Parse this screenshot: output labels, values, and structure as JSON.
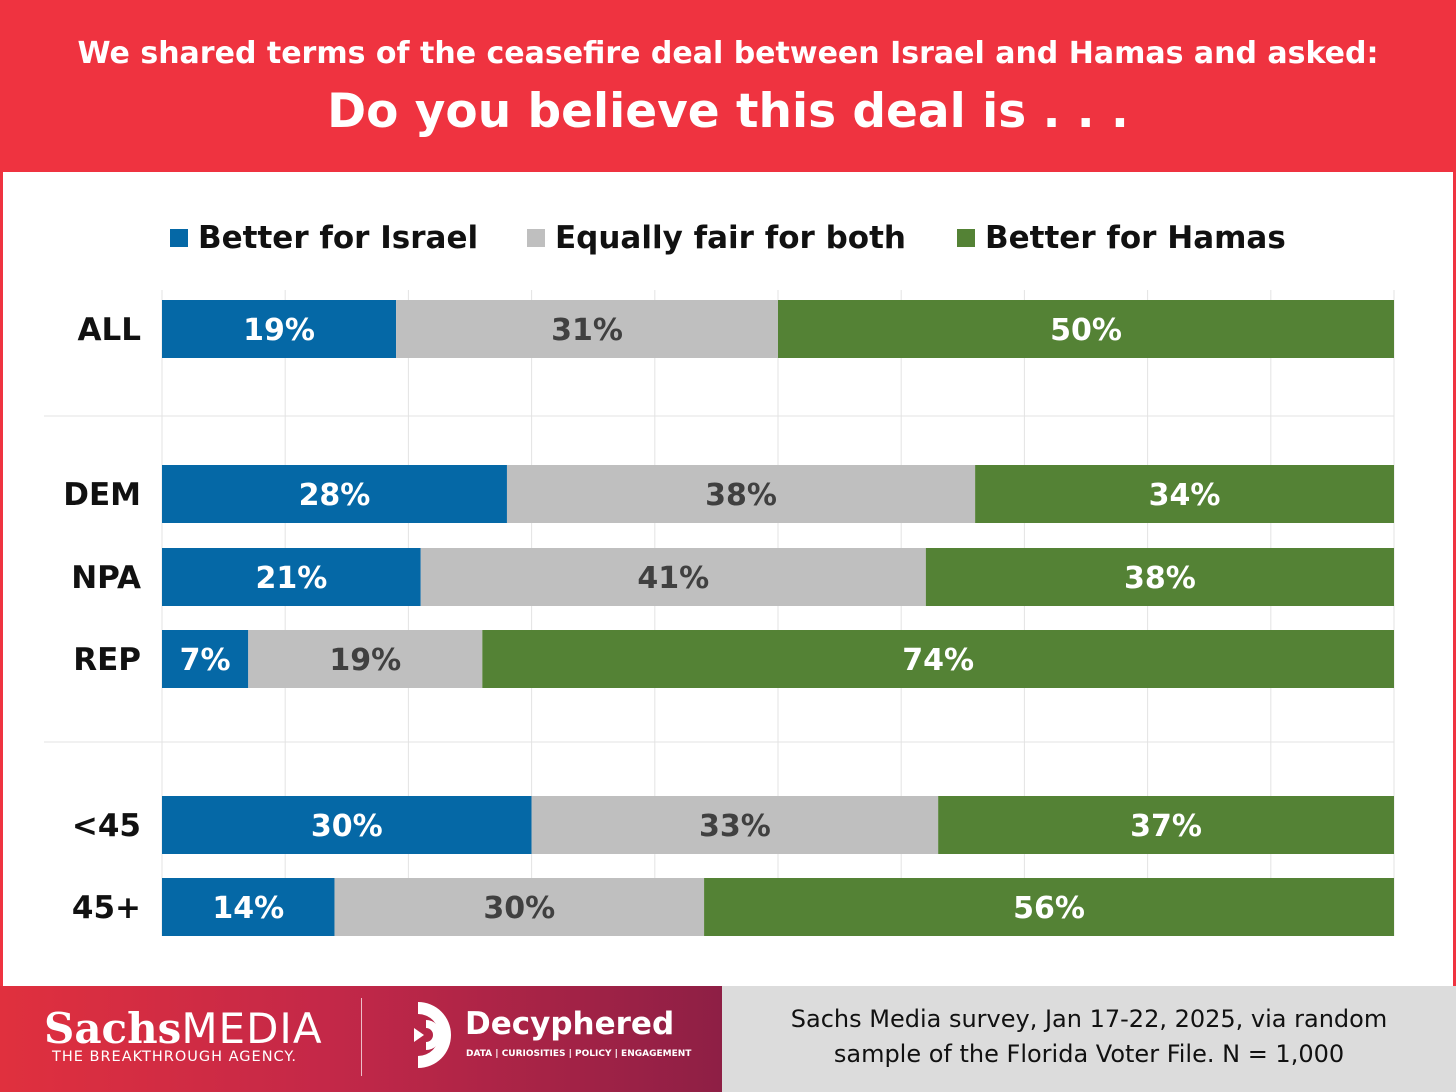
{
  "header": {
    "subtitle": "We shared terms of the ceasefire deal between Israel and Hamas and asked:",
    "title": "Do you believe this deal is . . ."
  },
  "colors": {
    "israel": "#0568a6",
    "equal": "#bfbfbf",
    "hamas": "#548235",
    "header": "#ef3340"
  },
  "chart_data": {
    "type": "bar",
    "orientation": "horizontal",
    "stacked": true,
    "categories": [
      "ALL",
      "DEM",
      "NPA",
      "REP",
      "<45",
      "45+"
    ],
    "series": [
      {
        "name": "Better for Israel",
        "values": [
          19,
          28,
          21,
          7,
          30,
          14
        ],
        "labels": [
          "19%",
          "28%",
          "21%",
          "7%",
          "30%",
          "14%"
        ]
      },
      {
        "name": "Equally fair for both",
        "values": [
          31,
          38,
          41,
          19,
          33,
          30
        ],
        "labels": [
          "31%",
          "38%",
          "41%",
          "19%",
          "33%",
          "30%"
        ]
      },
      {
        "name": "Better for Hamas",
        "values": [
          50,
          34,
          38,
          74,
          37,
          56
        ],
        "labels": [
          "50%",
          "34%",
          "38%",
          "74%",
          "37%",
          "56%"
        ]
      }
    ],
    "xlim": [
      0,
      100
    ],
    "grid": true,
    "legend": "top"
  },
  "footer": {
    "brand_name": "Sachs",
    "brand_suffix": "MEDIA",
    "tagline": "THE BREAKTHROUGH AGENCY.",
    "partner_name": "Decyphered",
    "partner_tagline": "DATA | CURIOSITIES | POLICY | ENGAGEMENT",
    "source_line1": "Sachs Media survey, Jan 17-22, 2025, via random",
    "source_line2": "sample of the Florida Voter File. N = 1,000"
  }
}
